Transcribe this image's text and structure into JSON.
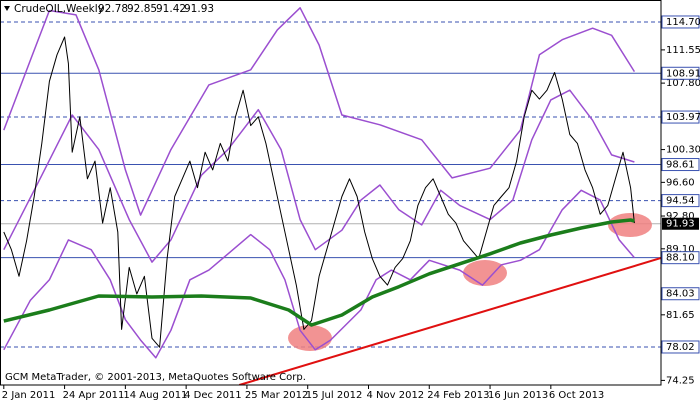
{
  "chart_data": {
    "type": "line",
    "title": "CrudeOIL,Weekly",
    "ohlc": [
      92.78,
      92.85,
      91.42,
      91.93
    ],
    "footer": "GCM MetaTrader, © 2001-2013, MetaQuotes Software Corp.",
    "xlim": [
      -1,
      173
    ],
    "ylim": [
      73.73,
      117.18
    ],
    "xticks": [
      {
        "value": 0,
        "label": "2 Jan 2011"
      },
      {
        "value": 16,
        "label": "24 Apr 2011"
      },
      {
        "value": 32,
        "label": "14 Aug 2011"
      },
      {
        "value": 48,
        "label": "4 Dec 2011"
      },
      {
        "value": 64,
        "label": "25 Mar 2012"
      },
      {
        "value": 80,
        "label": "15 Jul 2012"
      },
      {
        "value": 96,
        "label": "4 Nov 2012"
      },
      {
        "value": 112,
        "label": "24 Feb 2013"
      },
      {
        "value": 128,
        "label": "16 Jun 2013"
      },
      {
        "value": 144,
        "label": "6 Oct 2013"
      }
    ],
    "yticks": [
      111.55,
      {
        "value": 107.8,
        "label": "107.80"
      },
      {
        "value": 100.3,
        "label": "100.30"
      },
      {
        "value": 96.6,
        "label": "96.60"
      },
      {
        "value": 92.8,
        "label": "92.80"
      },
      {
        "value": 89.1,
        "label": "89.10"
      },
      81.65,
      74.25
    ],
    "levels": [
      {
        "value": 114.7,
        "label": "114.70",
        "style": "dashed"
      },
      {
        "value": 108.91,
        "style": "solid"
      },
      {
        "value": 103.97,
        "style": "dashed"
      },
      {
        "value": 98.61,
        "style": "solid"
      },
      {
        "value": 94.54,
        "style": "dashed"
      },
      {
        "value": 88.1,
        "label": "88.10",
        "style": "solid"
      },
      {
        "value": 84.03,
        "style": "none"
      },
      {
        "value": 78.02,
        "style": "dashed"
      }
    ],
    "level_color": "#3a52b0",
    "current_price": 91.93,
    "series": [
      {
        "color": "#9b4fd0",
        "line_width": 1.5,
        "x": [
          0,
          7,
          12,
          19,
          25,
          32,
          36,
          44,
          54,
          65,
          72,
          78,
          83,
          89,
          99,
          110,
          118,
          128,
          136,
          141,
          147,
          155,
          160,
          166
        ],
        "values": [
          102.5,
          110.4,
          116.0,
          115.5,
          109.3,
          98.0,
          92.9,
          100.3,
          107.6,
          109.3,
          113.8,
          116.3,
          112.1,
          104.2,
          103.1,
          101.4,
          97.1,
          98.2,
          102.5,
          111.0,
          112.7,
          114.0,
          113.2,
          109.1
        ]
      },
      {
        "color": "#9b4fd0",
        "line_width": 1.5,
        "x": [
          0,
          10,
          18,
          25,
          33,
          39,
          44,
          52,
          59,
          67,
          73,
          78,
          82,
          89,
          94,
          99,
          104,
          110,
          115,
          120,
          128,
          134,
          139,
          144,
          149,
          155,
          160,
          166
        ],
        "values": [
          89.0,
          97.4,
          104.2,
          100.3,
          92.4,
          87.6,
          90.1,
          97.4,
          100.3,
          104.8,
          100.3,
          92.4,
          89.0,
          91.2,
          94.6,
          96.3,
          93.5,
          91.8,
          95.7,
          94.0,
          92.4,
          94.6,
          101.4,
          105.9,
          107.0,
          103.6,
          99.7,
          98.9
        ]
      },
      {
        "color": "#9b4fd0",
        "line_width": 1.5,
        "x": [
          0,
          7,
          12,
          17,
          23,
          28,
          32,
          36,
          40,
          44,
          49,
          54,
          65,
          70,
          74,
          78,
          82,
          86,
          94,
          98,
          102,
          107,
          112,
          120,
          126,
          131,
          136,
          141,
          147,
          152,
          157,
          162,
          166
        ],
        "values": [
          77.7,
          83.3,
          85.6,
          90.1,
          89.0,
          85.6,
          81.1,
          78.8,
          76.8,
          79.9,
          85.6,
          86.7,
          90.7,
          89.0,
          85.6,
          79.9,
          77.7,
          78.8,
          82.2,
          85.6,
          86.7,
          85.6,
          87.8,
          86.7,
          85.0,
          87.3,
          87.8,
          89.0,
          93.5,
          95.7,
          94.6,
          90.1,
          88.1
        ]
      },
      {
        "color": "#000000",
        "line_width": 1,
        "x": [
          0,
          2,
          4,
          6,
          8,
          10,
          12,
          14,
          16,
          17,
          18,
          20,
          22,
          24,
          26,
          28,
          30,
          31,
          33,
          35,
          37,
          39,
          41,
          43,
          45,
          47,
          49,
          51,
          53,
          55,
          57,
          59,
          61,
          63,
          65,
          67,
          69,
          71,
          73,
          75,
          77,
          79,
          81,
          83,
          85,
          87,
          89,
          91,
          93,
          95,
          97,
          99,
          101,
          103,
          105,
          107,
          109,
          111,
          113,
          115,
          117,
          119,
          121,
          123,
          125,
          127,
          129,
          131,
          133,
          135,
          137,
          139,
          141,
          143,
          145,
          147,
          149,
          151,
          153,
          155,
          157,
          159,
          161,
          163,
          165,
          166
        ],
        "values": [
          91,
          89,
          86,
          90,
          95,
          101,
          108,
          111,
          113,
          110,
          100,
          104,
          97,
          99,
          92,
          96,
          91,
          80,
          87,
          84,
          86,
          79,
          78,
          88,
          95,
          97,
          99,
          96,
          100,
          98,
          101,
          99,
          104,
          107,
          103,
          104,
          101,
          97,
          93,
          89,
          85,
          80,
          81,
          86,
          89,
          92,
          95,
          97,
          95,
          91,
          88,
          86,
          85,
          87,
          88,
          90,
          94,
          96,
          97,
          95,
          93,
          92,
          90,
          89,
          88,
          91,
          94,
          95,
          96,
          99,
          104,
          107,
          106,
          107,
          109,
          106,
          102,
          101,
          98,
          96,
          93,
          94,
          97,
          100,
          96,
          92
        ]
      },
      {
        "color": "#1b7d1b",
        "line_width": 3.5,
        "x": [
          0,
          12,
          25,
          39,
          52,
          65,
          75,
          81,
          89,
          97,
          104,
          112,
          120,
          128,
          136,
          144,
          152,
          160,
          165,
          166
        ],
        "values": [
          80.94,
          82.19,
          83.77,
          83.66,
          83.77,
          83.55,
          82.19,
          80.5,
          81.63,
          83.66,
          84.82,
          86.28,
          87.41,
          88.54,
          89.76,
          90.66,
          91.45,
          92.13,
          92.35,
          92.24
        ]
      },
      {
        "color": "#e01010",
        "line_width": 2,
        "x": [
          62,
          173
        ],
        "values": [
          73.73,
          88.06
        ]
      }
    ]
  }
}
